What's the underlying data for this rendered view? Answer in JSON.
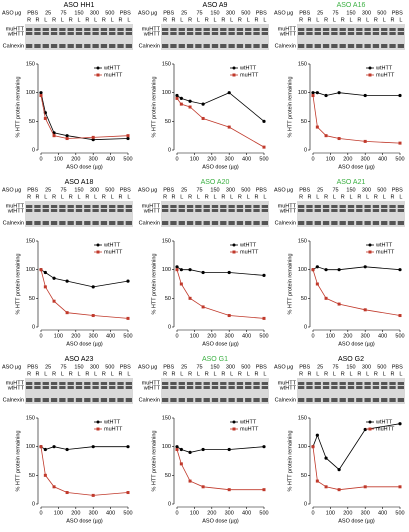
{
  "blot": {
    "aso_label": "ASO µg",
    "doses": [
      "PBS",
      "25",
      "75",
      "150",
      "300",
      "500",
      "PBS"
    ],
    "lanes": [
      "R",
      "R",
      "L",
      "R",
      "L",
      "R",
      "L",
      "R",
      "L",
      "R",
      "L",
      "R",
      "L"
    ],
    "rows": [
      "muHTT",
      "wtHTT",
      "Calnexin"
    ]
  },
  "chart_data": [
    {
      "type": "line",
      "title": "ASO HH1",
      "title_color": "#000000",
      "x_label": "ASO dose (µg)",
      "y_label": "% HTT protein remaining",
      "x": [
        0,
        25,
        75,
        150,
        300,
        500
      ],
      "xlim": [
        0,
        500
      ],
      "xticks": [
        0,
        100,
        200,
        300,
        400,
        500
      ],
      "ylim": [
        0,
        150
      ],
      "yticks": [
        0,
        50,
        100,
        150
      ],
      "legend": "upper right",
      "series": [
        {
          "name": "wtHTT",
          "color": "#000000",
          "values": [
            100,
            65,
            30,
            25,
            18,
            20
          ]
        },
        {
          "name": "muHTT",
          "color": "#c0392b",
          "values": [
            95,
            55,
            25,
            20,
            22,
            25
          ]
        }
      ]
    },
    {
      "type": "line",
      "title": "ASO A9",
      "title_color": "#000000",
      "x_label": "ASO dose (µg)",
      "y_label": "% HTT protein remaining",
      "x": [
        0,
        25,
        75,
        150,
        300,
        500
      ],
      "xlim": [
        0,
        500
      ],
      "xticks": [
        0,
        100,
        200,
        300,
        400,
        500
      ],
      "ylim": [
        0,
        150
      ],
      "yticks": [
        0,
        50,
        100,
        150
      ],
      "legend": "upper right",
      "series": [
        {
          "name": "wtHTT",
          "color": "#000000",
          "values": [
            95,
            90,
            85,
            80,
            100,
            50
          ]
        },
        {
          "name": "muHTT",
          "color": "#c0392b",
          "values": [
            90,
            80,
            75,
            55,
            40,
            5
          ]
        }
      ]
    },
    {
      "type": "line",
      "title": "ASO A16",
      "title_color": "#3cb043",
      "x_label": "ASO dose (µg)",
      "y_label": "% HTT protein remaining",
      "x": [
        0,
        25,
        75,
        150,
        300,
        500
      ],
      "xlim": [
        0,
        500
      ],
      "xticks": [
        0,
        100,
        200,
        300,
        400,
        500
      ],
      "ylim": [
        0,
        150
      ],
      "yticks": [
        0,
        50,
        100,
        150
      ],
      "legend": "upper right",
      "series": [
        {
          "name": "wtHTT",
          "color": "#000000",
          "values": [
            100,
            100,
            95,
            100,
            95,
            95
          ]
        },
        {
          "name": "muHTT",
          "color": "#c0392b",
          "values": [
            95,
            40,
            25,
            20,
            15,
            12
          ]
        }
      ]
    },
    {
      "type": "line",
      "title": "ASO A18",
      "title_color": "#000000",
      "x_label": "ASO dose (µg)",
      "y_label": "% HTT protein remaining",
      "x": [
        0,
        25,
        75,
        150,
        300,
        500
      ],
      "xlim": [
        0,
        500
      ],
      "xticks": [
        0,
        100,
        200,
        300,
        400,
        500
      ],
      "ylim": [
        0,
        150
      ],
      "yticks": [
        0,
        50,
        100,
        150
      ],
      "legend": "upper right",
      "series": [
        {
          "name": "wtHTT",
          "color": "#000000",
          "values": [
            100,
            95,
            85,
            80,
            70,
            80
          ]
        },
        {
          "name": "muHTT",
          "color": "#c0392b",
          "values": [
            100,
            70,
            45,
            25,
            20,
            15
          ]
        }
      ]
    },
    {
      "type": "line",
      "title": "ASO A20",
      "title_color": "#3cb043",
      "x_label": "ASO dose (µg)",
      "y_label": "% HTT protein remaining",
      "x": [
        0,
        25,
        75,
        150,
        300,
        500
      ],
      "xlim": [
        0,
        500
      ],
      "xticks": [
        0,
        100,
        200,
        300,
        400,
        500
      ],
      "ylim": [
        0,
        150
      ],
      "yticks": [
        0,
        50,
        100,
        150
      ],
      "legend": "upper right",
      "series": [
        {
          "name": "wtHTT",
          "color": "#000000",
          "values": [
            105,
            100,
            100,
            95,
            95,
            90
          ]
        },
        {
          "name": "muHTT",
          "color": "#c0392b",
          "values": [
            100,
            75,
            50,
            35,
            20,
            15
          ]
        }
      ]
    },
    {
      "type": "line",
      "title": "ASO A21",
      "title_color": "#3cb043",
      "x_label": "ASO dose (µg)",
      "y_label": "% HTT protein remaining",
      "x": [
        0,
        25,
        75,
        150,
        300,
        500
      ],
      "xlim": [
        0,
        500
      ],
      "xticks": [
        0,
        100,
        200,
        300,
        400,
        500
      ],
      "ylim": [
        0,
        150
      ],
      "yticks": [
        0,
        50,
        100,
        150
      ],
      "legend": "upper right",
      "series": [
        {
          "name": "wtHTT",
          "color": "#000000",
          "values": [
            100,
            105,
            100,
            100,
            105,
            100
          ]
        },
        {
          "name": "muHTT",
          "color": "#c0392b",
          "values": [
            100,
            75,
            50,
            40,
            30,
            20
          ]
        }
      ]
    },
    {
      "type": "line",
      "title": "ASO A23",
      "title_color": "#000000",
      "x_label": "ASO dose (µg)",
      "y_label": "% HTT protein remaining",
      "x": [
        0,
        25,
        75,
        150,
        300,
        500
      ],
      "xlim": [
        0,
        500
      ],
      "xticks": [
        0,
        100,
        200,
        300,
        400,
        500
      ],
      "ylim": [
        0,
        150
      ],
      "yticks": [
        0,
        50,
        100,
        150
      ],
      "legend": "upper right",
      "series": [
        {
          "name": "wtHTT",
          "color": "#000000",
          "values": [
            100,
            95,
            100,
            95,
            100,
            100
          ]
        },
        {
          "name": "muHTT",
          "color": "#c0392b",
          "values": [
            100,
            50,
            30,
            20,
            15,
            20
          ]
        }
      ]
    },
    {
      "type": "line",
      "title": "ASO G1",
      "title_color": "#3cb043",
      "x_label": "ASO dose (µg)",
      "y_label": "% HTT protein remaining",
      "x": [
        0,
        25,
        75,
        150,
        300,
        500
      ],
      "xlim": [
        0,
        500
      ],
      "xticks": [
        0,
        100,
        200,
        300,
        400,
        500
      ],
      "ylim": [
        0,
        150
      ],
      "yticks": [
        0,
        50,
        100,
        150
      ],
      "legend": "upper right",
      "series": [
        {
          "name": "wtHTT",
          "color": "#000000",
          "values": [
            100,
            95,
            90,
            95,
            95,
            100
          ]
        },
        {
          "name": "muHTT",
          "color": "#c0392b",
          "values": [
            95,
            70,
            40,
            30,
            25,
            25
          ]
        }
      ]
    },
    {
      "type": "line",
      "title": "ASO G2",
      "title_color": "#000000",
      "x_label": "ASO dose (µg)",
      "y_label": "% HTT protein remaining",
      "x": [
        0,
        25,
        75,
        150,
        300,
        500
      ],
      "xlim": [
        0,
        500
      ],
      "xticks": [
        0,
        100,
        200,
        300,
        400,
        500
      ],
      "ylim": [
        0,
        150
      ],
      "yticks": [
        0,
        50,
        100,
        150
      ],
      "legend": "upper right",
      "series": [
        {
          "name": "wtHTT",
          "color": "#000000",
          "values": [
            100,
            120,
            80,
            60,
            130,
            140
          ]
        },
        {
          "name": "muHTT",
          "color": "#c0392b",
          "values": [
            100,
            40,
            30,
            25,
            30,
            30
          ]
        }
      ]
    }
  ]
}
